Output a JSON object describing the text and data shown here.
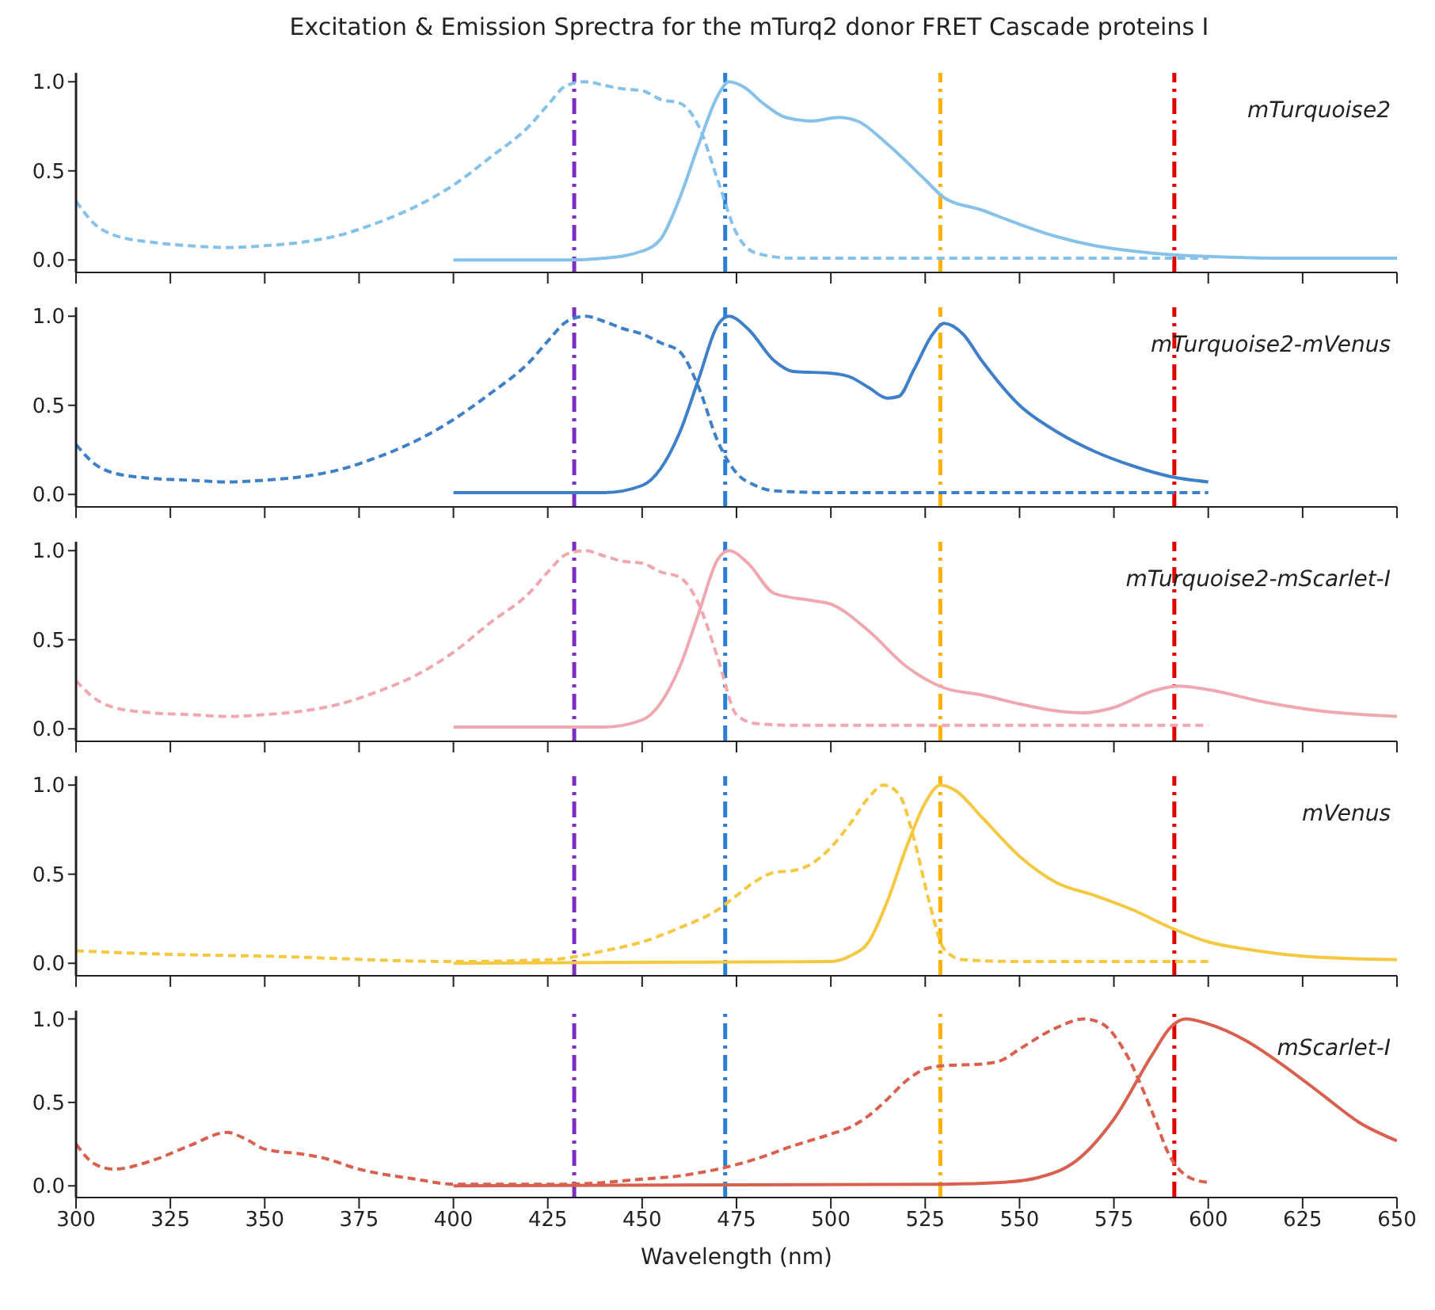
{
  "chart_data": [
    {
      "type": "line",
      "title": "Excitation & Emission Sprectra for the mTurq2 donor FRET Cascade proteins I",
      "annotations": [
        "mTurquoise2"
      ],
      "xlim": [
        300,
        650
      ],
      "xticks": [
        300,
        325,
        350,
        375,
        400,
        425,
        450,
        475,
        500,
        525,
        550,
        575,
        600,
        625,
        650
      ],
      "ylim": [
        -0.07,
        1.05
      ],
      "yticks": [
        {
          "value": 0,
          "label": "0.0"
        },
        {
          "value": 0.5,
          "label": "0.5"
        },
        {
          "value": 1,
          "label": "1.0"
        }
      ],
      "tick_labels": "y",
      "grid": false,
      "legend": false,
      "ref_lines": [
        {
          "axis": "x",
          "value": 432,
          "color": "#7b2fbe",
          "line_style": "dashed"
        },
        {
          "axis": "x",
          "value": 472,
          "color": "#2a7fd4",
          "line_style": "dashed"
        },
        {
          "axis": "x",
          "value": 529,
          "color": "#ffb300",
          "line_style": "dashed"
        },
        {
          "axis": "x",
          "value": 591,
          "color": "#e00000",
          "line_style": "dashed"
        }
      ],
      "series": [
        {
          "color": "#85c1e9",
          "line_style": "dashed",
          "x": [
            300,
            305,
            310,
            320,
            330,
            340,
            350,
            360,
            370,
            380,
            390,
            400,
            410,
            420,
            425,
            430,
            435,
            440,
            445,
            450,
            455,
            460,
            465,
            470,
            475,
            480,
            490,
            500,
            550,
            600
          ],
          "values": [
            0.33,
            0.2,
            0.14,
            0.1,
            0.08,
            0.07,
            0.08,
            0.1,
            0.14,
            0.21,
            0.3,
            0.42,
            0.58,
            0.75,
            0.87,
            0.98,
            1.0,
            0.98,
            0.96,
            0.95,
            0.9,
            0.88,
            0.75,
            0.45,
            0.15,
            0.04,
            0.01,
            0.01,
            0.01,
            0.01
          ]
        },
        {
          "color": "#85c1e9",
          "line_style": "solid",
          "x": [
            400,
            430,
            440,
            450,
            455,
            460,
            465,
            470,
            473,
            477,
            482,
            488,
            495,
            502,
            507,
            515,
            525,
            530,
            540,
            550,
            560,
            570,
            580,
            590,
            600,
            620,
            650
          ],
          "values": [
            0,
            0,
            0.01,
            0.05,
            0.12,
            0.35,
            0.65,
            0.92,
            1.0,
            0.97,
            0.88,
            0.8,
            0.78,
            0.8,
            0.78,
            0.65,
            0.45,
            0.35,
            0.28,
            0.2,
            0.13,
            0.08,
            0.05,
            0.03,
            0.02,
            0.01,
            0.01
          ]
        }
      ]
    },
    {
      "type": "line",
      "annotations": [
        "mTurquoise2-mVenus"
      ],
      "xlim": [
        300,
        650
      ],
      "xticks": [
        300,
        325,
        350,
        375,
        400,
        425,
        450,
        475,
        500,
        525,
        550,
        575,
        600,
        625,
        650
      ],
      "ylim": [
        -0.07,
        1.05
      ],
      "yticks": [
        {
          "value": 0,
          "label": "0.0"
        },
        {
          "value": 0.5,
          "label": "0.5"
        },
        {
          "value": 1,
          "label": "1.0"
        }
      ],
      "tick_labels": "y",
      "grid": false,
      "legend": false,
      "ref_lines": [
        {
          "axis": "x",
          "value": 432,
          "color": "#7b2fbe",
          "line_style": "dashed"
        },
        {
          "axis": "x",
          "value": 472,
          "color": "#2a7fd4",
          "line_style": "dashed"
        },
        {
          "axis": "x",
          "value": 529,
          "color": "#ffb300",
          "line_style": "dashed"
        },
        {
          "axis": "x",
          "value": 591,
          "color": "#e00000",
          "line_style": "dashed"
        }
      ],
      "series": [
        {
          "color": "#3d7fc9",
          "line_style": "dashed",
          "x": [
            300,
            305,
            310,
            320,
            330,
            340,
            350,
            360,
            370,
            380,
            390,
            400,
            410,
            420,
            425,
            430,
            435,
            440,
            445,
            450,
            455,
            460,
            465,
            470,
            475,
            480,
            485,
            500,
            550,
            600
          ],
          "values": [
            0.28,
            0.17,
            0.12,
            0.09,
            0.08,
            0.07,
            0.08,
            0.1,
            0.14,
            0.21,
            0.3,
            0.42,
            0.57,
            0.74,
            0.86,
            0.97,
            1.0,
            0.97,
            0.93,
            0.9,
            0.85,
            0.8,
            0.6,
            0.3,
            0.12,
            0.05,
            0.02,
            0.01,
            0.01,
            0.01
          ]
        },
        {
          "color": "#3d7fc9",
          "line_style": "solid",
          "x": [
            400,
            440,
            450,
            460,
            465,
            470,
            473,
            478,
            485,
            490,
            500,
            505,
            510,
            515,
            518,
            522,
            527,
            530,
            535,
            540,
            550,
            560,
            570,
            580,
            590,
            600
          ],
          "values": [
            0.01,
            0.01,
            0.05,
            0.35,
            0.65,
            0.95,
            1.0,
            0.93,
            0.75,
            0.69,
            0.68,
            0.66,
            0.6,
            0.54,
            0.55,
            0.7,
            0.9,
            0.96,
            0.9,
            0.75,
            0.5,
            0.35,
            0.24,
            0.16,
            0.1,
            0.07
          ]
        }
      ]
    },
    {
      "type": "line",
      "annotations": [
        "mTurquoise2-mScarlet-I"
      ],
      "xlim": [
        300,
        650
      ],
      "xticks": [
        300,
        325,
        350,
        375,
        400,
        425,
        450,
        475,
        500,
        525,
        550,
        575,
        600,
        625,
        650
      ],
      "ylim": [
        -0.07,
        1.05
      ],
      "yticks": [
        {
          "value": 0,
          "label": "0.0"
        },
        {
          "value": 0.5,
          "label": "0.5"
        },
        {
          "value": 1,
          "label": "1.0"
        }
      ],
      "tick_labels": "y",
      "grid": false,
      "legend": false,
      "ref_lines": [
        {
          "axis": "x",
          "value": 432,
          "color": "#7b2fbe",
          "line_style": "dashed"
        },
        {
          "axis": "x",
          "value": 472,
          "color": "#2a7fd4",
          "line_style": "dashed"
        },
        {
          "axis": "x",
          "value": 529,
          "color": "#ffb300",
          "line_style": "dashed"
        },
        {
          "axis": "x",
          "value": 591,
          "color": "#e00000",
          "line_style": "dashed"
        }
      ],
      "series": [
        {
          "color": "#f0a8b0",
          "line_style": "dashed",
          "x": [
            300,
            305,
            310,
            320,
            330,
            340,
            350,
            360,
            370,
            380,
            390,
            400,
            410,
            420,
            425,
            430,
            435,
            440,
            445,
            450,
            455,
            460,
            465,
            470,
            475,
            480,
            490,
            500,
            550,
            600
          ],
          "values": [
            0.27,
            0.17,
            0.12,
            0.09,
            0.08,
            0.07,
            0.08,
            0.1,
            0.14,
            0.21,
            0.3,
            0.43,
            0.6,
            0.76,
            0.88,
            0.98,
            1.0,
            0.97,
            0.94,
            0.93,
            0.88,
            0.85,
            0.7,
            0.4,
            0.08,
            0.03,
            0.02,
            0.02,
            0.02,
            0.02
          ]
        },
        {
          "color": "#f0a8b0",
          "line_style": "solid",
          "x": [
            400,
            440,
            450,
            460,
            465,
            470,
            473,
            478,
            485,
            495,
            500,
            510,
            520,
            530,
            540,
            550,
            560,
            567,
            575,
            585,
            592,
            600,
            615,
            630,
            650
          ],
          "values": [
            0.01,
            0.01,
            0.05,
            0.35,
            0.65,
            0.95,
            1.0,
            0.93,
            0.76,
            0.72,
            0.7,
            0.55,
            0.35,
            0.23,
            0.19,
            0.14,
            0.1,
            0.09,
            0.12,
            0.21,
            0.24,
            0.22,
            0.15,
            0.1,
            0.07
          ]
        }
      ]
    },
    {
      "type": "line",
      "annotations": [
        "mVenus"
      ],
      "xlim": [
        300,
        650
      ],
      "xticks": [
        300,
        325,
        350,
        375,
        400,
        425,
        450,
        475,
        500,
        525,
        550,
        575,
        600,
        625,
        650
      ],
      "ylim": [
        -0.07,
        1.05
      ],
      "yticks": [
        {
          "value": 0,
          "label": "0.0"
        },
        {
          "value": 0.5,
          "label": "0.5"
        },
        {
          "value": 1,
          "label": "1.0"
        }
      ],
      "tick_labels": "y",
      "grid": false,
      "legend": false,
      "ref_lines": [
        {
          "axis": "x",
          "value": 432,
          "color": "#7b2fbe",
          "line_style": "dashed"
        },
        {
          "axis": "x",
          "value": 472,
          "color": "#2a7fd4",
          "line_style": "dashed"
        },
        {
          "axis": "x",
          "value": 529,
          "color": "#ffb300",
          "line_style": "dashed"
        },
        {
          "axis": "x",
          "value": 591,
          "color": "#e00000",
          "line_style": "dashed"
        }
      ],
      "series": [
        {
          "color": "#f5c842",
          "line_style": "dashed",
          "x": [
            300,
            325,
            350,
            400,
            425,
            440,
            450,
            460,
            470,
            475,
            480,
            485,
            490,
            495,
            500,
            505,
            510,
            514,
            518,
            522,
            526,
            530,
            535,
            550,
            600
          ],
          "values": [
            0.07,
            0.05,
            0.04,
            0.01,
            0.02,
            0.07,
            0.12,
            0.2,
            0.3,
            0.38,
            0.46,
            0.51,
            0.52,
            0.56,
            0.65,
            0.78,
            0.93,
            1.0,
            0.95,
            0.7,
            0.35,
            0.08,
            0.02,
            0.01,
            0.01
          ]
        },
        {
          "color": "#f5c842",
          "line_style": "solid",
          "x": [
            400,
            500,
            505,
            510,
            515,
            520,
            525,
            529,
            533,
            540,
            550,
            560,
            570,
            580,
            590,
            600,
            610,
            625,
            650
          ],
          "values": [
            0,
            0.01,
            0.04,
            0.12,
            0.35,
            0.65,
            0.9,
            1.0,
            0.97,
            0.82,
            0.6,
            0.45,
            0.38,
            0.3,
            0.2,
            0.12,
            0.08,
            0.04,
            0.02
          ]
        }
      ]
    },
    {
      "type": "line",
      "annotations": [
        "mScarlet-I"
      ],
      "xlabel": "Wavelength (nm)",
      "xlim": [
        300,
        650
      ],
      "xticks": [
        300,
        325,
        350,
        375,
        400,
        425,
        450,
        475,
        500,
        525,
        550,
        575,
        600,
        625,
        650
      ],
      "ylim": [
        -0.07,
        1.05
      ],
      "yticks": [
        {
          "value": 0,
          "label": "0.0"
        },
        {
          "value": 0.5,
          "label": "0.5"
        },
        {
          "value": 1,
          "label": "1.0"
        }
      ],
      "grid": false,
      "legend": false,
      "ref_lines": [
        {
          "axis": "x",
          "value": 432,
          "color": "#7b2fbe",
          "line_style": "dashed"
        },
        {
          "axis": "x",
          "value": 472,
          "color": "#2a7fd4",
          "line_style": "dashed"
        },
        {
          "axis": "x",
          "value": 529,
          "color": "#ffb300",
          "line_style": "dashed"
        },
        {
          "axis": "x",
          "value": 591,
          "color": "#e00000",
          "line_style": "dashed"
        }
      ],
      "series": [
        {
          "color": "#d9604e",
          "line_style": "dashed",
          "x": [
            300,
            305,
            310,
            320,
            330,
            340,
            345,
            350,
            360,
            365,
            375,
            390,
            400,
            430,
            450,
            460,
            470,
            480,
            490,
            500,
            505,
            510,
            515,
            520,
            525,
            530,
            540,
            545,
            550,
            560,
            567,
            572,
            578,
            585,
            590,
            595,
            600
          ],
          "values": [
            0.25,
            0.13,
            0.1,
            0.15,
            0.24,
            0.32,
            0.28,
            0.22,
            0.19,
            0.17,
            0.1,
            0.04,
            0.01,
            0.01,
            0.04,
            0.06,
            0.1,
            0.16,
            0.24,
            0.31,
            0.35,
            0.42,
            0.52,
            0.63,
            0.7,
            0.72,
            0.73,
            0.75,
            0.82,
            0.95,
            1.0,
            0.97,
            0.8,
            0.45,
            0.17,
            0.05,
            0.02
          ]
        },
        {
          "color": "#d9604e",
          "line_style": "solid",
          "x": [
            400,
            530,
            545,
            555,
            565,
            575,
            585,
            590,
            594,
            600,
            610,
            620,
            630,
            640,
            650
          ],
          "values": [
            0,
            0.01,
            0.02,
            0.05,
            0.15,
            0.4,
            0.78,
            0.95,
            1.0,
            0.97,
            0.87,
            0.72,
            0.55,
            0.38,
            0.27
          ]
        }
      ]
    }
  ]
}
